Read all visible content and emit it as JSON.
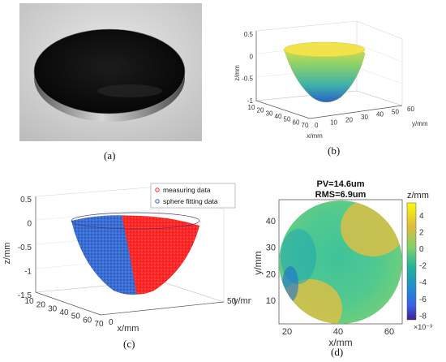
{
  "figure": {
    "panel_a": {
      "caption": "(a)"
    },
    "panel_b": {
      "caption": "(b)",
      "chart_data": {
        "type": "surface3d",
        "xlabel": "x/mm",
        "ylabel": "y/mm",
        "zlabel": "z/mm",
        "x_ticks": [
          "10",
          "20",
          "30",
          "40",
          "50",
          "60",
          "70"
        ],
        "y_ticks": [
          "0",
          "10",
          "20",
          "30",
          "40",
          "50",
          "60"
        ],
        "z_ticks": [
          "0.5",
          "0",
          "-0.5",
          "-1"
        ],
        "colormap": [
          "#2a62c8",
          "#3fb3a8",
          "#8ed16a",
          "#ece04a"
        ]
      }
    },
    "panel_c": {
      "caption": "(c)",
      "chart_data": {
        "type": "scatter3d",
        "xlabel": "x/mm",
        "ylabel": "y/mm",
        "zlabel": "z/mm",
        "x_ticks": [
          "10",
          "20",
          "30",
          "40",
          "50",
          "60",
          "70"
        ],
        "y_ticks": [
          "0",
          "50"
        ],
        "z_ticks": [
          "0.5",
          "0",
          "-0.5",
          "-1",
          "-1.5"
        ],
        "series": [
          {
            "name": "measuring data",
            "color": "#ff2020"
          },
          {
            "name": "sphere fitting data",
            "color": "#2060d0"
          }
        ]
      }
    },
    "panel_d": {
      "caption": "(d)",
      "chart_data": {
        "type": "heatmap",
        "title_lines": [
          "PV=14.6um",
          "RMS=6.9um"
        ],
        "xlabel": "x/mm",
        "ylabel": "y/mm",
        "x_ticks": [
          "20",
          "40",
          "60"
        ],
        "y_ticks": [
          "10",
          "20",
          "30",
          "40"
        ],
        "colorbar_label": "z/mm",
        "colorbar_ticks": [
          "4",
          "2",
          "0",
          "-2",
          "-4",
          "-6",
          "-8"
        ],
        "colorbar_exponent": "×10⁻³",
        "colorbar_range": [
          -8.5,
          5.5
        ]
      }
    }
  }
}
